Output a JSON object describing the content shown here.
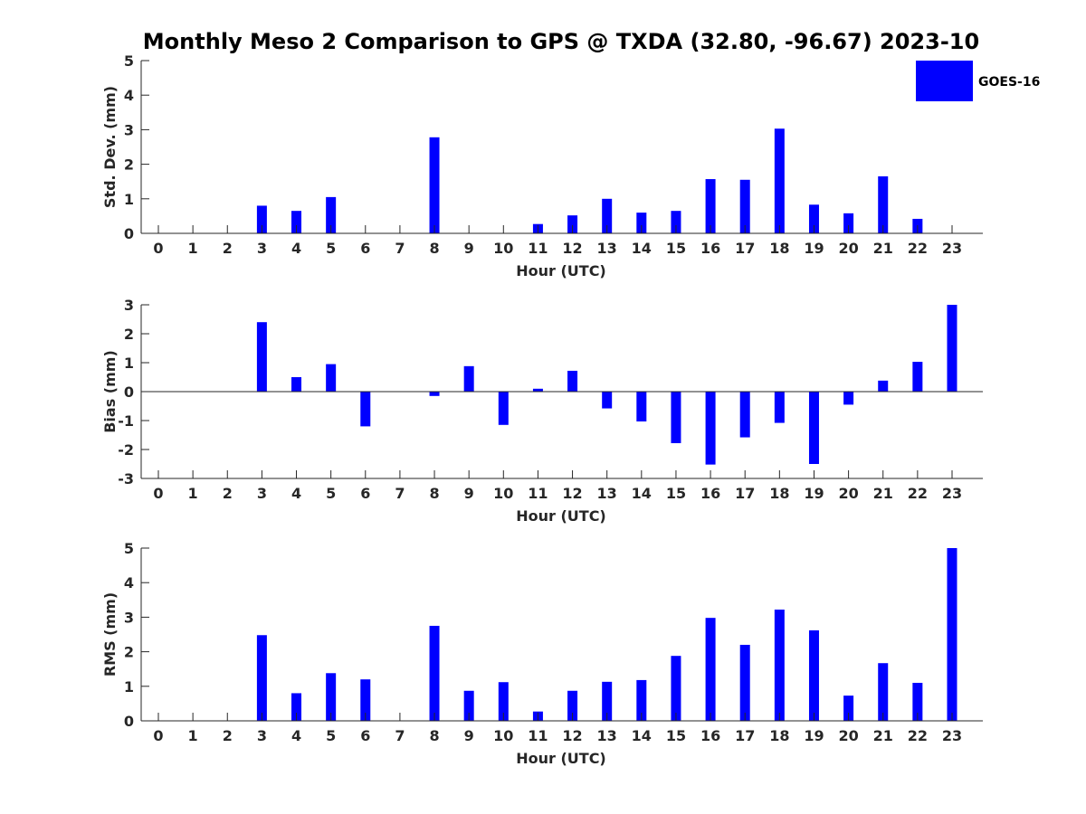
{
  "title": "Monthly Meso 2 Comparison to GPS @ TXDA (32.80, -96.67) 2023-10",
  "legend": {
    "label": "GOES-16",
    "color": "#0000ff"
  },
  "chart_data": [
    {
      "type": "bar",
      "xlabel": "Hour (UTC)",
      "ylabel": "Std. Dev. (mm)",
      "ylim": [
        0,
        5
      ],
      "yticks": [
        0,
        1,
        2,
        3,
        4,
        5
      ],
      "categories": [
        "0",
        "1",
        "2",
        "3",
        "4",
        "5",
        "6",
        "7",
        "8",
        "9",
        "10",
        "11",
        "12",
        "13",
        "14",
        "15",
        "16",
        "17",
        "18",
        "19",
        "20",
        "21",
        "22",
        "23"
      ],
      "series": [
        {
          "name": "GOES-16",
          "values": [
            0,
            0,
            0,
            0.8,
            0.65,
            1.05,
            0,
            0,
            2.78,
            0,
            0,
            0.27,
            0.52,
            1.0,
            0.6,
            0.65,
            1.57,
            1.55,
            3.03,
            0.83,
            0.58,
            1.65,
            0.42,
            0
          ]
        }
      ],
      "color": "#0000ff",
      "grid": false
    },
    {
      "type": "bar",
      "xlabel": "Hour (UTC)",
      "ylabel": "Bias (mm)",
      "ylim": [
        -3,
        3
      ],
      "yticks": [
        -3,
        -2,
        -1,
        0,
        1,
        2,
        3
      ],
      "categories": [
        "0",
        "1",
        "2",
        "3",
        "4",
        "5",
        "6",
        "7",
        "8",
        "9",
        "10",
        "11",
        "12",
        "13",
        "14",
        "15",
        "16",
        "17",
        "18",
        "19",
        "20",
        "21",
        "22",
        "23"
      ],
      "series": [
        {
          "name": "GOES-16",
          "values": [
            0,
            0,
            0,
            2.4,
            0.5,
            0.95,
            -1.2,
            0,
            -0.15,
            0.88,
            -1.15,
            0.1,
            0.72,
            -0.58,
            -1.03,
            -1.78,
            -2.52,
            -1.58,
            -1.08,
            -2.5,
            -0.45,
            0.38,
            1.03,
            3.0
          ]
        }
      ],
      "color": "#0000ff",
      "grid": false
    },
    {
      "type": "bar",
      "xlabel": "Hour (UTC)",
      "ylabel": "RMS (mm)",
      "ylim": [
        0,
        5
      ],
      "yticks": [
        0,
        1,
        2,
        3,
        4,
        5
      ],
      "categories": [
        "0",
        "1",
        "2",
        "3",
        "4",
        "5",
        "6",
        "7",
        "8",
        "9",
        "10",
        "11",
        "12",
        "13",
        "14",
        "15",
        "16",
        "17",
        "18",
        "19",
        "20",
        "21",
        "22",
        "23"
      ],
      "series": [
        {
          "name": "GOES-16",
          "values": [
            0,
            0,
            0,
            2.48,
            0.8,
            1.38,
            1.2,
            0,
            2.75,
            0.87,
            1.12,
            0.27,
            0.87,
            1.13,
            1.18,
            1.88,
            2.98,
            2.2,
            3.22,
            2.62,
            0.73,
            1.67,
            1.1,
            5.0
          ]
        }
      ],
      "color": "#0000ff",
      "grid": false
    }
  ]
}
